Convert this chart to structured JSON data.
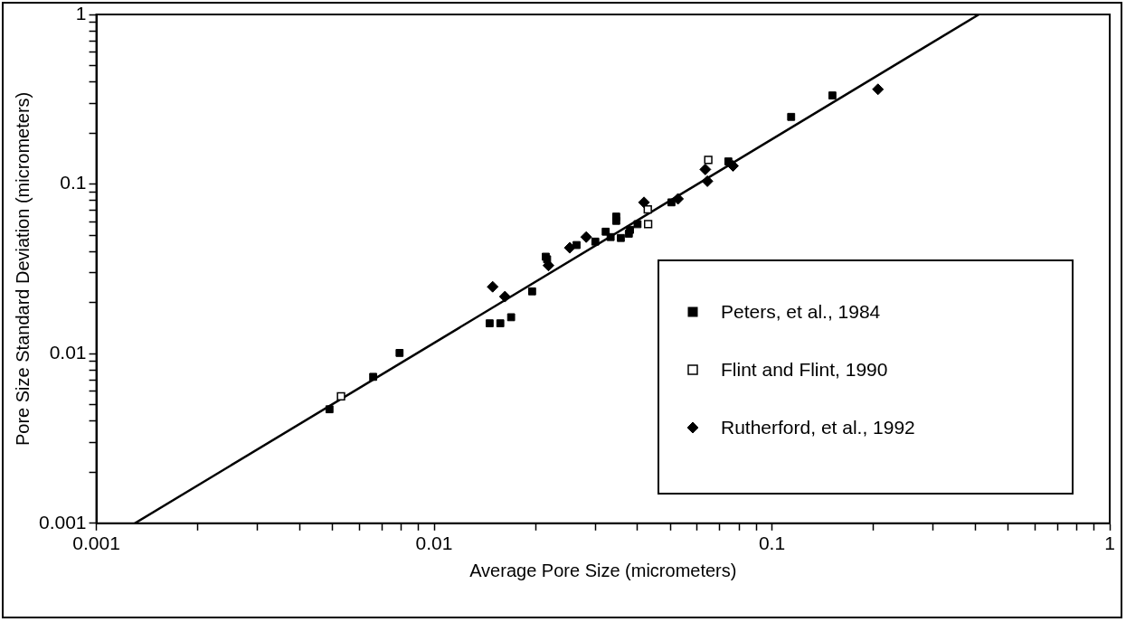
{
  "chart_data": {
    "type": "scatter",
    "xlabel": "Average Pore Size (micrometers)",
    "ylabel": "Pore Size Standard Deviation (micrometers)",
    "log": "xy",
    "grid": false,
    "legend": "bottom right",
    "xlim": [
      0.001,
      1
    ],
    "ylim": [
      0.001,
      1
    ],
    "xticks": [
      0.001,
      {
        "value": 0.002,
        "label": null
      },
      {
        "value": 0.003,
        "label": null
      },
      {
        "value": 0.004,
        "label": null
      },
      {
        "value": 0.005,
        "label": null
      },
      {
        "value": 0.006,
        "label": null
      },
      {
        "value": 0.007,
        "label": null
      },
      {
        "value": 0.008,
        "label": null
      },
      {
        "value": 0.009,
        "label": null
      },
      0.01,
      {
        "value": 0.02,
        "label": null
      },
      {
        "value": 0.03,
        "label": null
      },
      {
        "value": 0.04,
        "label": null
      },
      {
        "value": 0.05,
        "label": null
      },
      {
        "value": 0.06,
        "label": null
      },
      {
        "value": 0.07,
        "label": null
      },
      {
        "value": 0.08,
        "label": null
      },
      {
        "value": 0.09,
        "label": null
      },
      0.1,
      {
        "value": 0.2,
        "label": null
      },
      {
        "value": 0.3,
        "label": null
      },
      {
        "value": 0.4,
        "label": null
      },
      {
        "value": 0.5,
        "label": null
      },
      {
        "value": 0.6,
        "label": null
      },
      {
        "value": 0.7,
        "label": null
      },
      {
        "value": 0.8,
        "label": null
      },
      {
        "value": 0.9,
        "label": null
      },
      1
    ],
    "yticks": [
      0.001,
      {
        "value": 0.002,
        "label": null
      },
      {
        "value": 0.003,
        "label": null
      },
      {
        "value": 0.004,
        "label": null
      },
      {
        "value": 0.005,
        "label": null
      },
      {
        "value": 0.006,
        "label": null
      },
      {
        "value": 0.007,
        "label": null
      },
      {
        "value": 0.008,
        "label": null
      },
      {
        "value": 0.009,
        "label": null
      },
      0.01,
      {
        "value": 0.02,
        "label": null
      },
      {
        "value": 0.03,
        "label": null
      },
      {
        "value": 0.04,
        "label": null
      },
      {
        "value": 0.05,
        "label": null
      },
      {
        "value": 0.06,
        "label": null
      },
      {
        "value": 0.07,
        "label": null
      },
      {
        "value": 0.08,
        "label": null
      },
      {
        "value": 0.09,
        "label": null
      },
      0.1,
      {
        "value": 0.2,
        "label": null
      },
      {
        "value": 0.3,
        "label": null
      },
      {
        "value": 0.4,
        "label": null
      },
      {
        "value": 0.5,
        "label": null
      },
      {
        "value": 0.6,
        "label": null
      },
      {
        "value": 0.7,
        "label": null
      },
      {
        "value": 0.8,
        "label": null
      },
      {
        "value": 0.9,
        "label": null
      },
      1
    ],
    "series": [
      {
        "name": "Peters, et al., 1984",
        "color": "#000000",
        "marker": "square",
        "x": [
          0.0049,
          0.0066,
          0.0079,
          0.0146,
          0.0157,
          0.0169,
          0.0195,
          0.0214,
          0.0216,
          0.0264,
          0.03,
          0.0322,
          0.0333,
          0.0346,
          0.0346,
          0.0357,
          0.0377,
          0.038,
          0.04,
          0.0504,
          0.0743,
          0.114,
          0.151
        ],
        "values": [
          0.0047,
          0.0073,
          0.0101,
          0.0151,
          0.0151,
          0.0164,
          0.0233,
          0.0373,
          0.036,
          0.0437,
          0.0458,
          0.0524,
          0.0487,
          0.0643,
          0.0607,
          0.0481,
          0.051,
          0.0537,
          0.058,
          0.078,
          0.136,
          0.249,
          0.333
        ]
      },
      {
        "name": "Flint and Flint, 1990",
        "color": "#000000",
        "marker": "square-open",
        "x": [
          0.0053,
          0.043,
          0.0429,
          0.0648
        ],
        "values": [
          0.0056,
          0.058,
          0.0708,
          0.139
        ]
      },
      {
        "name": "Rutherford, et al., 1992",
        "color": "#000000",
        "marker": "diamond",
        "x": [
          0.0149,
          0.0162,
          0.0218,
          0.0252,
          0.0282,
          0.0418,
          0.0527,
          0.0635,
          0.0644,
          0.0767,
          0.206
        ],
        "values": [
          0.0248,
          0.0217,
          0.0331,
          0.0421,
          0.0487,
          0.078,
          0.0818,
          0.122,
          0.104,
          0.128,
          0.362
        ]
      },
      {
        "type": "line",
        "color": "#000000",
        "marker": "none",
        "x": [
          0.0013,
          0.41
        ],
        "values": [
          0.001,
          1
        ]
      }
    ]
  }
}
